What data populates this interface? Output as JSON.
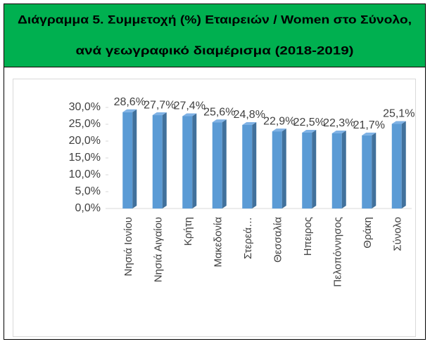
{
  "chart_data": {
    "type": "bar3d",
    "title": [
      "Διάγραμμα 5. Συμμετοχή (%) Εταιρειών / Women στο Σύνολο,",
      "ανά γεωγραφικό διαμέρισμα (2018-2019)"
    ],
    "categories": [
      "Νησιά Ιονίου",
      "Νησιά Αιγαίου",
      "Κρήτη",
      "Μακεδονία",
      "Στερεά…",
      "Θεσσαλία",
      "Ηπειρος",
      "Πελοπόννησος",
      "Θράκη",
      "Σύνολο"
    ],
    "values": [
      28.6,
      27.7,
      27.4,
      25.6,
      24.8,
      22.9,
      22.5,
      22.3,
      21.7,
      25.1
    ],
    "value_labels": [
      "28,6%",
      "27,7%",
      "27,4%",
      "25,6%",
      "24,8%",
      "22,9%",
      "22,5%",
      "22,3%",
      "21,7%",
      "25,1%"
    ],
    "color": "#5b9bd5",
    "ylim": [
      0,
      30
    ],
    "yticks": [
      {
        "value": 0,
        "label": "0,0%"
      },
      {
        "value": 5,
        "label": "5,0%"
      },
      {
        "value": 10,
        "label": "10,0%"
      },
      {
        "value": 15,
        "label": "15,0%"
      },
      {
        "value": 20,
        "label": "20,0%"
      },
      {
        "value": 25,
        "label": "25,0%"
      },
      {
        "value": 30,
        "label": "30,0%"
      }
    ]
  }
}
